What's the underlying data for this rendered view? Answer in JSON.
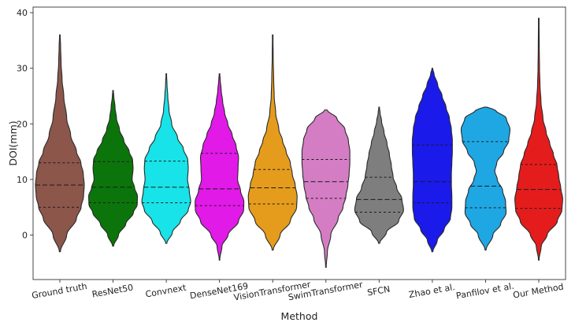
{
  "chart_data": {
    "type": "violin",
    "title": "",
    "xlabel": "Method",
    "ylabel": "DOI(mm)",
    "ylim": [
      -8,
      41
    ],
    "yticks": [
      0,
      10,
      20,
      30,
      40
    ],
    "grid": false,
    "inner": "quartile",
    "series": [
      {
        "name": "Ground truth",
        "color": "#8C564B",
        "min": -3,
        "max": 36,
        "q1": 5.0,
        "median": 9.0,
        "q3": 13.0,
        "density": [
          [
            -3,
            0.02
          ],
          [
            0,
            0.28
          ],
          [
            3,
            0.68
          ],
          [
            5,
            0.87
          ],
          [
            7,
            0.97
          ],
          [
            9,
            1.0
          ],
          [
            11,
            0.96
          ],
          [
            13,
            0.86
          ],
          [
            15,
            0.68
          ],
          [
            18,
            0.44
          ],
          [
            21,
            0.28
          ],
          [
            25,
            0.16
          ],
          [
            28,
            0.09
          ],
          [
            31,
            0.05
          ],
          [
            34,
            0.03
          ],
          [
            36,
            0.01
          ]
        ]
      },
      {
        "name": "ResNet50",
        "color": "#0B750B",
        "min": -2,
        "max": 26,
        "q1": 5.8,
        "median": 8.6,
        "q3": 13.2,
        "density": [
          [
            -2,
            0.02
          ],
          [
            0,
            0.22
          ],
          [
            2,
            0.52
          ],
          [
            4,
            0.83
          ],
          [
            5.5,
            0.99
          ],
          [
            7,
            1.0
          ],
          [
            8.5,
            0.88
          ],
          [
            10,
            0.78
          ],
          [
            12,
            0.82
          ],
          [
            13.5,
            0.8
          ],
          [
            15,
            0.66
          ],
          [
            17,
            0.44
          ],
          [
            19,
            0.26
          ],
          [
            21,
            0.14
          ],
          [
            23,
            0.08
          ],
          [
            25,
            0.03
          ],
          [
            26,
            0.01
          ]
        ]
      },
      {
        "name": "Convnext",
        "color": "#17E3E8",
        "min": -1.5,
        "max": 29,
        "q1": 5.8,
        "median": 8.6,
        "q3": 13.3,
        "density": [
          [
            -1.5,
            0.02
          ],
          [
            0.5,
            0.25
          ],
          [
            2.5,
            0.58
          ],
          [
            4.5,
            0.9
          ],
          [
            6,
            1.0
          ],
          [
            8,
            0.94
          ],
          [
            10,
            0.87
          ],
          [
            12,
            0.9
          ],
          [
            13.5,
            0.88
          ],
          [
            15.5,
            0.7
          ],
          [
            17.5,
            0.46
          ],
          [
            20,
            0.22
          ],
          [
            22.5,
            0.11
          ],
          [
            25,
            0.06
          ],
          [
            27,
            0.03
          ],
          [
            29,
            0.01
          ]
        ]
      },
      {
        "name": "DenseNet169",
        "color": "#E11AE8",
        "min": -4.5,
        "max": 29,
        "q1": 5.3,
        "median": 8.3,
        "q3": 14.7,
        "density": [
          [
            -4.5,
            0.01
          ],
          [
            -2,
            0.1
          ],
          [
            0,
            0.35
          ],
          [
            2.5,
            0.78
          ],
          [
            4.5,
            0.99
          ],
          [
            6,
            1.0
          ],
          [
            8,
            0.86
          ],
          [
            10,
            0.74
          ],
          [
            12,
            0.76
          ],
          [
            14,
            0.78
          ],
          [
            16,
            0.68
          ],
          [
            18,
            0.52
          ],
          [
            20,
            0.34
          ],
          [
            22,
            0.21
          ],
          [
            24,
            0.13
          ],
          [
            26,
            0.07
          ],
          [
            28,
            0.03
          ],
          [
            29,
            0.01
          ]
        ]
      },
      {
        "name": "VisionTransformer",
        "color": "#E59C1C",
        "min": -2.7,
        "max": 36,
        "q1": 5.6,
        "median": 8.5,
        "q3": 11.8,
        "density": [
          [
            -2.7,
            0.02
          ],
          [
            0,
            0.3
          ],
          [
            2.5,
            0.72
          ],
          [
            5,
            0.98
          ],
          [
            7,
            1.0
          ],
          [
            9,
            0.92
          ],
          [
            11,
            0.8
          ],
          [
            13,
            0.72
          ],
          [
            15,
            0.55
          ],
          [
            17,
            0.4
          ],
          [
            19,
            0.25
          ],
          [
            22,
            0.12
          ],
          [
            25,
            0.06
          ],
          [
            28,
            0.04
          ],
          [
            32,
            0.02
          ],
          [
            36,
            0.01
          ]
        ]
      },
      {
        "name": "SwimTransformer",
        "color": "#D47DC4",
        "min": -5.8,
        "max": 22.5,
        "q1": 6.6,
        "median": 9.6,
        "q3": 13.6,
        "density": [
          [
            -5.8,
            0.01
          ],
          [
            -3,
            0.06
          ],
          [
            0,
            0.2
          ],
          [
            3,
            0.5
          ],
          [
            5,
            0.7
          ],
          [
            7,
            0.82
          ],
          [
            9,
            0.9
          ],
          [
            11,
            0.95
          ],
          [
            13,
            0.98
          ],
          [
            15,
            0.98
          ],
          [
            17,
            0.92
          ],
          [
            19,
            0.78
          ],
          [
            21,
            0.45
          ],
          [
            22.5,
            0.05
          ]
        ]
      },
      {
        "name": "SFCN",
        "color": "#7E7E7E",
        "min": -1.5,
        "max": 23,
        "q1": 4.1,
        "median": 6.4,
        "q3": 10.4,
        "density": [
          [
            -1.5,
            0.02
          ],
          [
            0.5,
            0.3
          ],
          [
            2.5,
            0.8
          ],
          [
            4.5,
            1.0
          ],
          [
            6.5,
            0.93
          ],
          [
            8.5,
            0.72
          ],
          [
            10.5,
            0.57
          ],
          [
            12.5,
            0.5
          ],
          [
            14.5,
            0.42
          ],
          [
            16.5,
            0.32
          ],
          [
            18.5,
            0.2
          ],
          [
            20.5,
            0.1
          ],
          [
            22,
            0.04
          ],
          [
            23,
            0.01
          ]
        ]
      },
      {
        "name": "Zhao et al.",
        "color": "#1A1AEB",
        "min": -3,
        "max": 30,
        "q1": 5.8,
        "median": 9.6,
        "q3": 16.2,
        "density": [
          [
            -3,
            0.02
          ],
          [
            -1,
            0.2
          ],
          [
            1,
            0.48
          ],
          [
            3,
            0.74
          ],
          [
            5,
            0.8
          ],
          [
            7,
            0.8
          ],
          [
            9,
            0.78
          ],
          [
            11,
            0.78
          ],
          [
            13,
            0.8
          ],
          [
            15,
            0.82
          ],
          [
            17,
            0.82
          ],
          [
            19,
            0.78
          ],
          [
            21,
            0.7
          ],
          [
            23,
            0.56
          ],
          [
            25,
            0.4
          ],
          [
            27,
            0.22
          ],
          [
            29,
            0.07
          ],
          [
            30,
            0.01
          ]
        ]
      },
      {
        "name": "Panfilov et al.",
        "color": "#1FA7E4",
        "min": -2.7,
        "max": 23,
        "q1": 4.9,
        "median": 8.8,
        "q3": 16.8,
        "density": [
          [
            -2.7,
            0.02
          ],
          [
            0,
            0.3
          ],
          [
            2,
            0.62
          ],
          [
            4,
            0.84
          ],
          [
            6,
            0.82
          ],
          [
            8,
            0.7
          ],
          [
            10,
            0.48
          ],
          [
            11.5,
            0.38
          ],
          [
            13,
            0.46
          ],
          [
            15,
            0.74
          ],
          [
            17,
            0.95
          ],
          [
            19,
            1.0
          ],
          [
            21,
            0.85
          ],
          [
            22.5,
            0.4
          ],
          [
            23,
            0.05
          ]
        ]
      },
      {
        "name": "Our Method",
        "color": "#E41C1C",
        "min": -4.5,
        "max": 39,
        "q1": 4.8,
        "median": 8.2,
        "q3": 12.7,
        "density": [
          [
            -4.5,
            0.01
          ],
          [
            -2,
            0.1
          ],
          [
            0,
            0.34
          ],
          [
            2.5,
            0.76
          ],
          [
            4.5,
            0.95
          ],
          [
            6.5,
            0.98
          ],
          [
            8.5,
            0.9
          ],
          [
            10.5,
            0.82
          ],
          [
            12.5,
            0.75
          ],
          [
            14.5,
            0.6
          ],
          [
            16.5,
            0.45
          ],
          [
            18.5,
            0.3
          ],
          [
            21,
            0.17
          ],
          [
            24,
            0.09
          ],
          [
            27,
            0.05
          ],
          [
            30,
            0.03
          ],
          [
            34,
            0.02
          ],
          [
            39,
            0.01
          ]
        ]
      }
    ]
  }
}
